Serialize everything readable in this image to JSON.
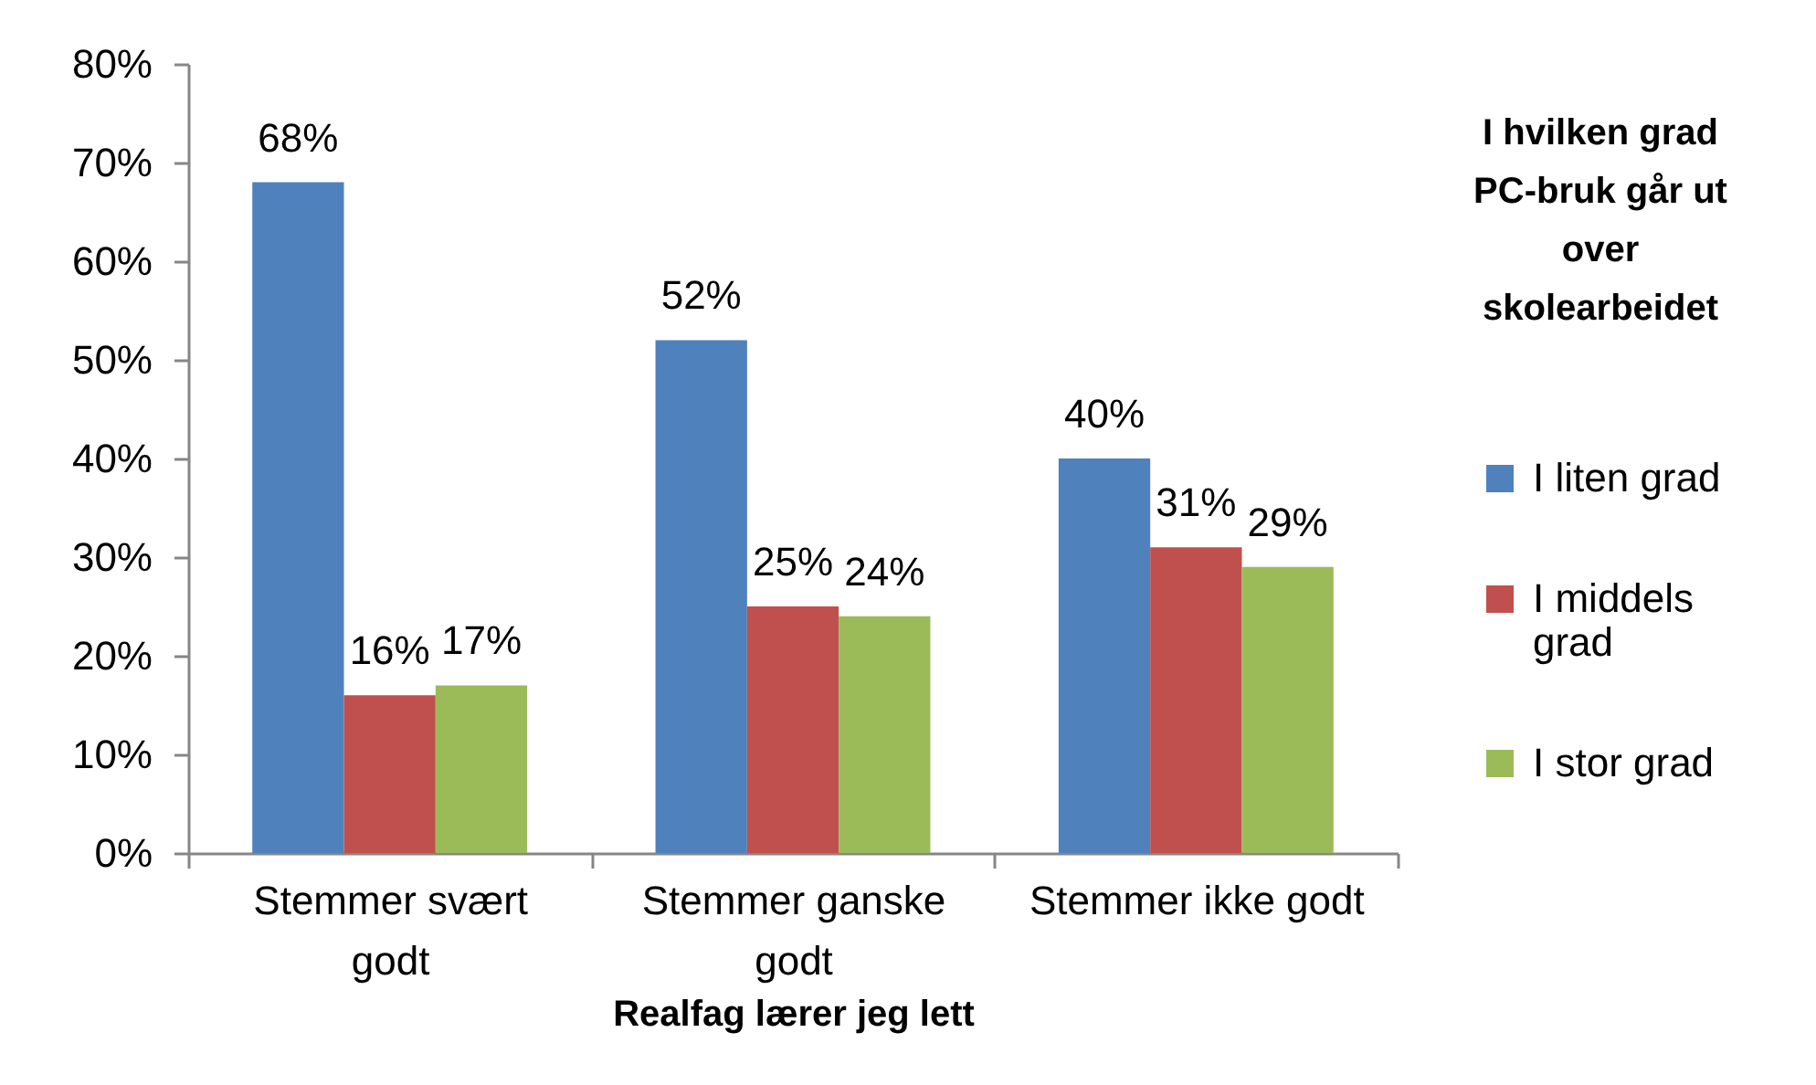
{
  "chart_data": {
    "type": "bar",
    "xlabel": "Realfag lærer jeg lett",
    "legend_title": "I hvilken grad PC-bruk går ut over skolearbeidet",
    "categories": [
      "Stemmer svært godt",
      "Stemmer ganske godt",
      "Stemmer ikke godt"
    ],
    "series": [
      {
        "name": "I liten grad",
        "color": "#4f81bd",
        "values": [
          68,
          52,
          40
        ],
        "value_labels": [
          "68%",
          "52%",
          "40%"
        ]
      },
      {
        "name": "I middels grad",
        "color": "#c0504d",
        "values": [
          16,
          25,
          31
        ],
        "value_labels": [
          "16%",
          "25%",
          "31%"
        ]
      },
      {
        "name": "I stor grad",
        "color": "#9bbb59",
        "values": [
          17,
          24,
          29
        ],
        "value_labels": [
          "17%",
          "24%",
          "29%"
        ]
      }
    ],
    "ylim": [
      0,
      80
    ],
    "yticks": [
      {
        "value": 0,
        "label": "0%"
      },
      {
        "value": 10,
        "label": "10%"
      },
      {
        "value": 20,
        "label": "20%"
      },
      {
        "value": 30,
        "label": "30%"
      },
      {
        "value": 40,
        "label": "40%"
      },
      {
        "value": 50,
        "label": "50%"
      },
      {
        "value": 60,
        "label": "60%"
      },
      {
        "value": 70,
        "label": "70%"
      },
      {
        "value": 80,
        "label": "80%"
      }
    ],
    "legend": "right"
  }
}
